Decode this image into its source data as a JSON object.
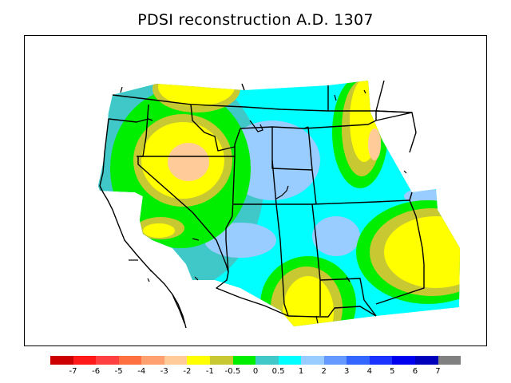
{
  "title": "PDSI reconstruction A.D. 1307",
  "legend": {
    "colors": [
      "#cc0000",
      "#ff1a1a",
      "#ff4040",
      "#ff7040",
      "#ffa070",
      "#ffcc99",
      "#ffff00",
      "#c8c832",
      "#00ee00",
      "#40c8c8",
      "#00ffff",
      "#99ccff",
      "#6699ff",
      "#3366ff",
      "#1a33ff",
      "#0000ee",
      "#0000bb",
      "#808080"
    ],
    "tick_labels": [
      "-7",
      "-6",
      "-5",
      "-4",
      "-3",
      "-2",
      "-1",
      "-0.5",
      "0",
      "0.5",
      "1",
      "2",
      "3",
      "4",
      "5",
      "6",
      "7"
    ]
  }
}
